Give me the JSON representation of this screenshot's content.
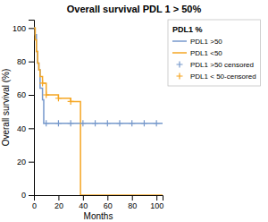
{
  "chart_data": {
    "type": "line",
    "title": "Overall survival PDL 1 > 50%",
    "xlabel": "Months",
    "ylabel": "Overall survival (%)",
    "legend_title": "PDL1 %",
    "legend": "right",
    "grid": false,
    "xlim": [
      0,
      105
    ],
    "ylim": [
      0,
      105
    ],
    "xticks": [
      0,
      20,
      40,
      60,
      80,
      100
    ],
    "yticks": [
      0,
      20,
      40,
      60,
      80,
      100
    ],
    "series": [
      {
        "name": "PDL1 >50",
        "type": "line",
        "color": "#7799cc",
        "x": [
          0,
          0.5,
          1,
          1,
          2,
          2,
          3,
          3,
          4,
          4,
          5,
          5,
          7,
          7,
          8,
          8,
          10,
          10,
          105
        ],
        "values": [
          100,
          100,
          100,
          96,
          96,
          86,
          86,
          79,
          79,
          75,
          75,
          64,
          64,
          57,
          57,
          43,
          43,
          43,
          43
        ]
      },
      {
        "name": "PDL1 <50",
        "type": "line",
        "color": "#f5a623",
        "x": [
          0,
          1,
          1,
          2,
          2,
          3,
          3,
          4,
          4,
          5,
          5,
          7,
          7,
          10,
          10,
          20,
          20,
          30,
          30,
          38,
          38,
          105
        ],
        "values": [
          100,
          100,
          93,
          93,
          86,
          86,
          79,
          79,
          75,
          75,
          71,
          71,
          67,
          67,
          60,
          60,
          58,
          58,
          56,
          56,
          0,
          0
        ]
      },
      {
        "name": "PDL1 >50 censored",
        "type": "scatter",
        "marker": "plus",
        "color": "#7799cc",
        "x": [
          10,
          20,
          30,
          40,
          50,
          60,
          70,
          80,
          90,
          100
        ],
        "values": [
          43,
          43,
          43,
          43,
          43,
          43,
          43,
          43,
          43,
          43
        ]
      },
      {
        "name": "PDL1 < 50-censored",
        "type": "scatter",
        "marker": "plus",
        "color": "#f5a623",
        "x": [
          7,
          10,
          20,
          30
        ],
        "values": [
          67,
          60,
          58,
          56
        ]
      }
    ]
  }
}
